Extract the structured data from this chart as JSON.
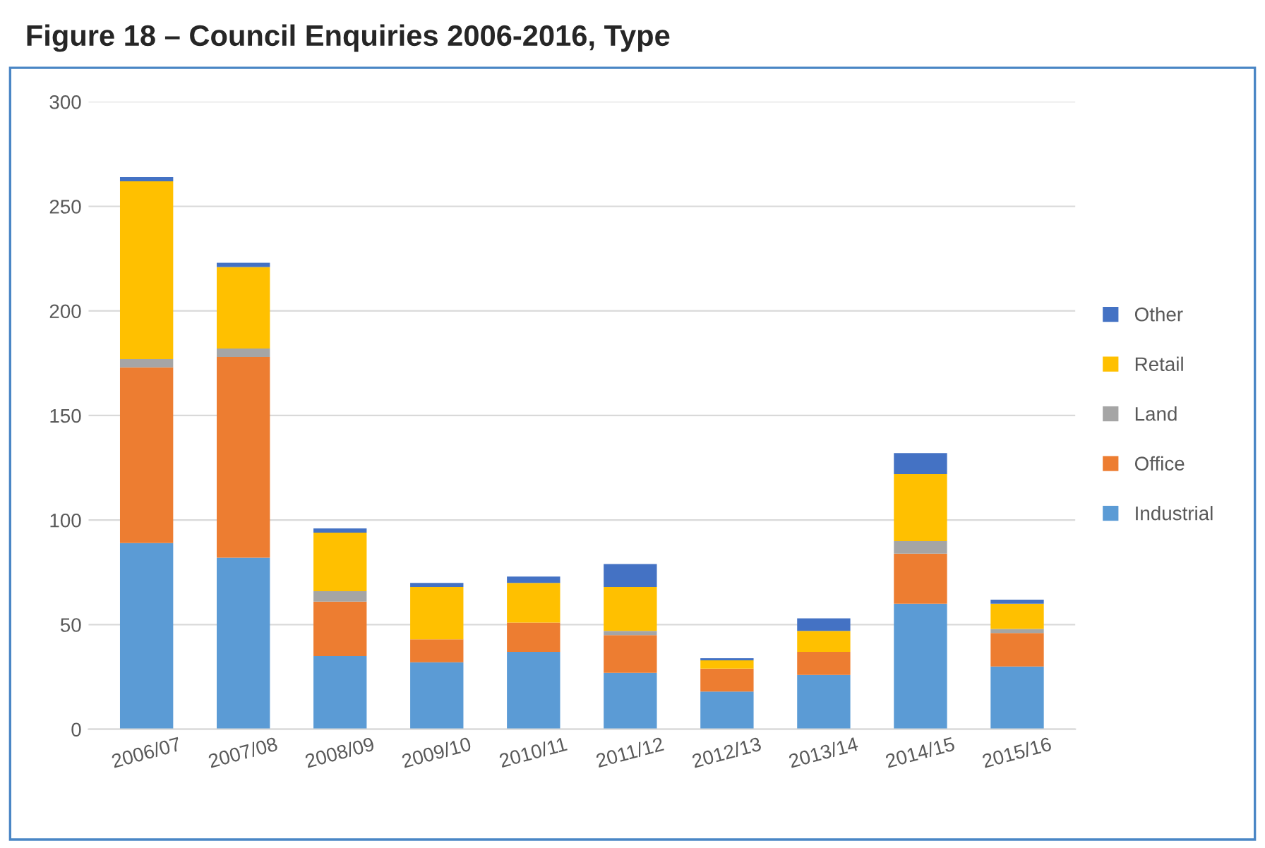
{
  "chart_data": {
    "type": "bar",
    "title": "Figure 18 – Council Enquiries 2006-2016, Type",
    "stacked": true,
    "categories": [
      "2006/07",
      "2007/08",
      "2008/09",
      "2009/10",
      "2010/11",
      "2011/12",
      "2012/13",
      "2013/14",
      "2014/15",
      "2015/16"
    ],
    "series": [
      {
        "name": "Industrial",
        "color": "#5b9bd5",
        "values": [
          89,
          82,
          35,
          32,
          37,
          27,
          18,
          26,
          60,
          30
        ]
      },
      {
        "name": "Office",
        "color": "#ed7d31",
        "values": [
          84,
          96,
          26,
          11,
          14,
          18,
          11,
          11,
          24,
          16
        ]
      },
      {
        "name": "Land",
        "color": "#a5a5a5",
        "values": [
          4,
          4,
          5,
          0,
          0,
          2,
          0,
          0,
          6,
          2
        ]
      },
      {
        "name": "Retail",
        "color": "#ffc000",
        "values": [
          85,
          39,
          28,
          25,
          19,
          21,
          4,
          10,
          32,
          12
        ]
      },
      {
        "name": "Other",
        "color": "#4472c4",
        "values": [
          2,
          2,
          2,
          2,
          3,
          11,
          1,
          6,
          10,
          2
        ]
      }
    ],
    "ylim": [
      0,
      300
    ],
    "yticks": [
      0,
      50,
      100,
      150,
      200,
      250,
      300
    ],
    "grid": "y",
    "legend": "right"
  }
}
